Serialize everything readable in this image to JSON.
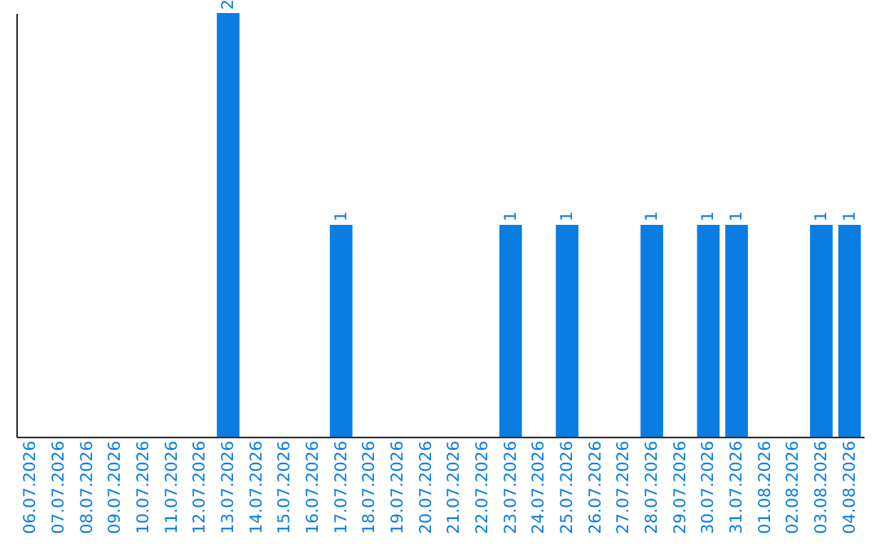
{
  "chart_data": {
    "type": "bar",
    "categories": [
      "06.07.2026",
      "07.07.2026",
      "08.07.2026",
      "09.07.2026",
      "10.07.2026",
      "11.07.2026",
      "12.07.2026",
      "13.07.2026",
      "14.07.2026",
      "15.07.2026",
      "16.07.2026",
      "17.07.2026",
      "18.07.2026",
      "19.07.2026",
      "20.07.2026",
      "21.07.2026",
      "22.07.2026",
      "23.07.2026",
      "24.07.2026",
      "25.07.2026",
      "26.07.2026",
      "27.07.2026",
      "28.07.2026",
      "29.07.2026",
      "30.07.2026",
      "31.07.2026",
      "01.08.2026",
      "02.08.2026",
      "03.08.2026",
      "04.08.2026"
    ],
    "values": [
      0,
      0,
      0,
      0,
      0,
      0,
      0,
      2,
      0,
      0,
      0,
      1,
      0,
      0,
      0,
      0,
      0,
      1,
      0,
      1,
      0,
      0,
      1,
      0,
      1,
      1,
      0,
      0,
      1,
      1
    ],
    "value_labels": [
      null,
      null,
      null,
      null,
      null,
      null,
      null,
      "2",
      null,
      null,
      null,
      "1",
      null,
      null,
      null,
      null,
      null,
      "1",
      null,
      "1",
      null,
      null,
      "1",
      null,
      "1",
      "1",
      null,
      null,
      "1",
      "1"
    ],
    "color": "#0a7de3",
    "grid": false,
    "tick_labels": "x"
  }
}
